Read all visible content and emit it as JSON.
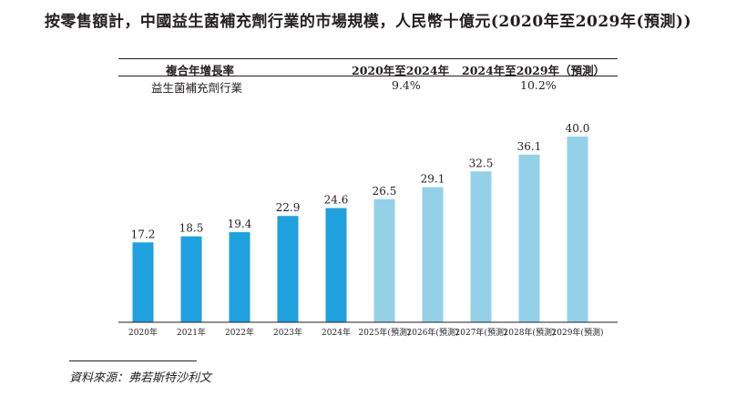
{
  "title": "按零售額計，中國益生菌補充劑行業的市場規模，人民幣十億元(2020年至2029年(預測))",
  "cagr_table": {
    "header": [
      "複合年增長率",
      "2020年至2024年",
      "2024年至2029年（預測）"
    ],
    "row": [
      "益生菌補充劑行業",
      "9.4%",
      "10.2%"
    ]
  },
  "chart_data": {
    "type": "bar",
    "title": "按零售額計，中國益生菌補充劑行業的市場規模，人民幣十億元(2020年至2029年(預測))",
    "categories": [
      "2020年",
      "2021年",
      "2022年",
      "2023年",
      "2024年",
      "2025年(預測)",
      "2026年(預測)",
      "2027年(預測)",
      "2028年(預測)",
      "2029年(預測)"
    ],
    "values": [
      17.2,
      18.5,
      19.4,
      22.9,
      24.6,
      26.5,
      29.1,
      32.5,
      36.1,
      40.0
    ],
    "value_labels": [
      "17.2",
      "18.5",
      "19.4",
      "22.9",
      "24.6",
      "26.5",
      "29.1",
      "32.5",
      "36.1",
      "40.0"
    ],
    "series_colors": {
      "historical": "#1fa1df",
      "forecast": "#94d1e8"
    },
    "forecast_start_index": 5,
    "xlabel": "",
    "ylabel": "",
    "ylim": [
      0,
      40.0
    ],
    "grid": false,
    "legend": "none"
  },
  "source": "資料來源：弗若斯特沙利文"
}
